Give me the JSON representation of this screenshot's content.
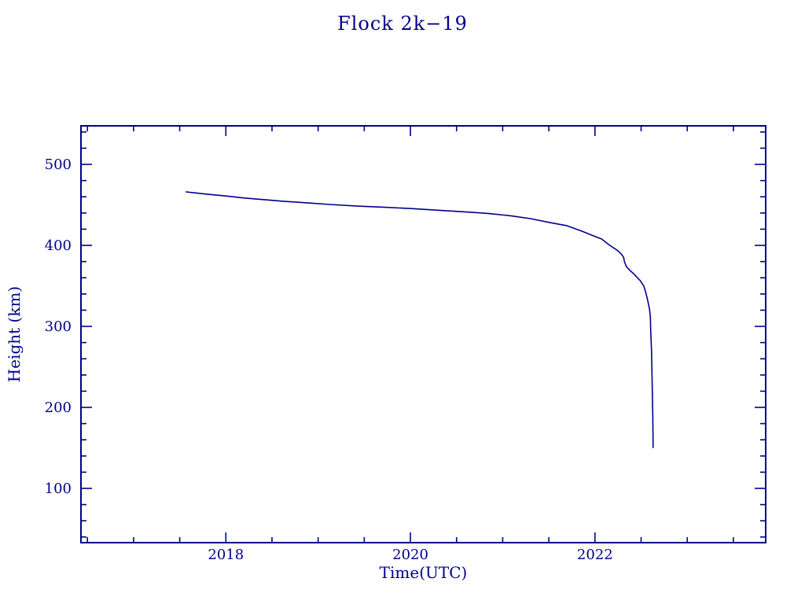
{
  "title": "Flock 2k−19",
  "colors": {
    "plot_color": "#00008b",
    "background": "#ffffff"
  },
  "chart_data": {
    "type": "line",
    "title": "Flock 2k−19",
    "xlabel": "Time(UTC)",
    "ylabel": "Height (km)",
    "xlim": [
      2016.43,
      2023.85
    ],
    "ylim": [
      33,
      547.6
    ],
    "grid": false,
    "legend": false,
    "x_major_ticks": [
      2018,
      2020,
      2022
    ],
    "x_major_tick_labels": [
      "2018",
      "2020",
      "2022"
    ],
    "x_minor_tick_step": 0.5,
    "y_major_ticks": [
      100,
      200,
      300,
      400,
      500
    ],
    "y_major_tick_labels": [
      "100",
      "200",
      "300",
      "400",
      "500"
    ],
    "y_minor_tick_step": 20,
    "series": [
      {
        "name": "orbital-height",
        "color": "#00008b",
        "points": [
          [
            2017.57,
            466
          ],
          [
            2017.69,
            464.5
          ],
          [
            2017.81,
            463
          ],
          [
            2018.0,
            461
          ],
          [
            2018.2,
            458.5
          ],
          [
            2018.41,
            456.5
          ],
          [
            2018.62,
            454.5
          ],
          [
            2018.88,
            452.5
          ],
          [
            2019.13,
            450.5
          ],
          [
            2019.43,
            448.5
          ],
          [
            2019.73,
            447
          ],
          [
            2020.01,
            445.5
          ],
          [
            2020.28,
            443.5
          ],
          [
            2020.58,
            441.5
          ],
          [
            2020.83,
            439.5
          ],
          [
            2021.09,
            436.5
          ],
          [
            2021.3,
            433
          ],
          [
            2021.52,
            428
          ],
          [
            2021.69,
            424.5
          ],
          [
            2021.86,
            417.5
          ],
          [
            2021.98,
            412
          ],
          [
            2022.07,
            408
          ],
          [
            2022.15,
            401
          ],
          [
            2022.24,
            394
          ],
          [
            2022.28,
            390
          ],
          [
            2022.31,
            385.5
          ],
          [
            2022.32,
            379.5
          ],
          [
            2022.34,
            374
          ],
          [
            2022.37,
            370
          ],
          [
            2022.42,
            365
          ],
          [
            2022.46,
            360
          ],
          [
            2022.49,
            356.5
          ],
          [
            2022.53,
            349.5
          ],
          [
            2022.55,
            342
          ],
          [
            2022.57,
            333
          ],
          [
            2022.59,
            322
          ],
          [
            2022.6,
            312
          ],
          [
            2022.604,
            296
          ],
          [
            2022.613,
            269
          ],
          [
            2022.62,
            230
          ],
          [
            2022.627,
            188
          ],
          [
            2022.63,
            150.5
          ]
        ]
      }
    ]
  }
}
